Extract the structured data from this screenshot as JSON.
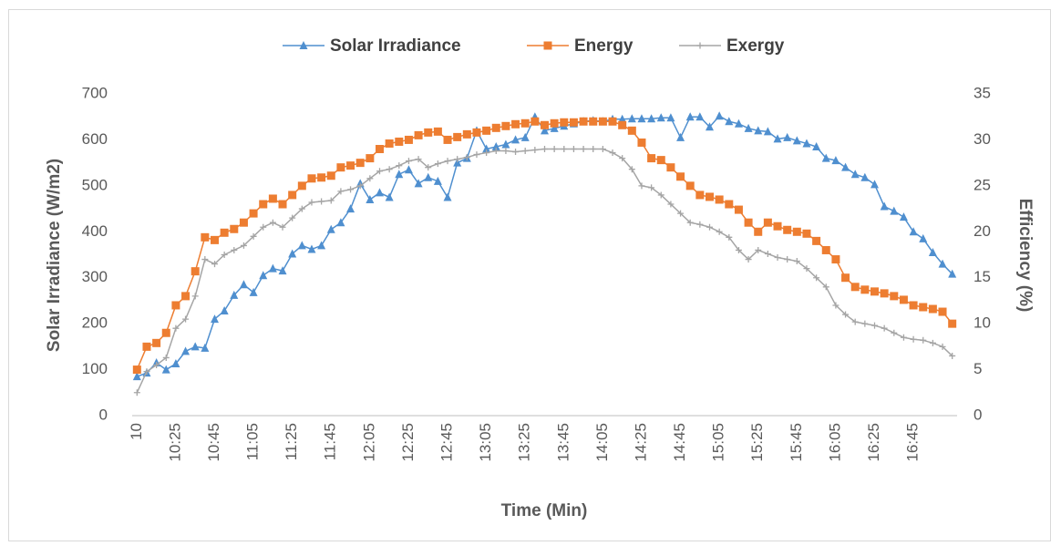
{
  "chart_data": {
    "type": "line",
    "xlabel": "Time (Min)",
    "ylabel": "Solar Irradiance (W/m2)",
    "y2label": "Efficiency (%)",
    "categories": [
      "10",
      null,
      null,
      null,
      "10:25",
      null,
      null,
      null,
      "10:45",
      null,
      null,
      null,
      "11:05",
      null,
      null,
      null,
      "11:25",
      null,
      null,
      null,
      "11:45",
      null,
      null,
      null,
      "12:05",
      null,
      null,
      null,
      "12:25",
      null,
      null,
      null,
      "12:45",
      null,
      null,
      null,
      "13:05",
      null,
      null,
      null,
      "13:25",
      null,
      null,
      null,
      "13:45",
      null,
      null,
      null,
      "14:05",
      null,
      null,
      null,
      "14:25",
      null,
      null,
      null,
      "14:45",
      null,
      null,
      null,
      "15:05",
      null,
      null,
      null,
      "15:25",
      null,
      null,
      null,
      "15:45",
      null,
      null,
      null,
      "16:05",
      null,
      null,
      null,
      "16:25",
      null,
      null,
      null,
      "16:45",
      null,
      null,
      null,
      null
    ],
    "series": [
      {
        "name": "Solar Irradiance",
        "color": "#4f8fcf",
        "marker": "triangle",
        "axis": "y",
        "values": [
          85,
          93,
          115,
          100,
          113,
          140,
          150,
          147,
          210,
          228,
          262,
          285,
          268,
          305,
          320,
          315,
          352,
          370,
          362,
          370,
          405,
          420,
          450,
          505,
          470,
          485,
          475,
          525,
          535,
          505,
          518,
          510,
          475,
          550,
          560,
          620,
          580,
          585,
          590,
          600,
          605,
          650,
          620,
          625,
          630,
          635,
          640,
          642,
          640,
          645,
          645,
          646,
          646,
          646,
          648,
          648,
          605,
          650,
          650,
          628,
          652,
          640,
          635,
          625,
          620,
          618,
          602,
          605,
          598,
          592,
          585,
          560,
          555,
          540,
          525,
          518,
          503,
          455,
          445,
          432,
          400,
          385,
          355,
          330,
          308
        ]
      },
      {
        "name": "Energy",
        "color": "#ed7d31",
        "marker": "square",
        "axis": "y2",
        "values": [
          5,
          7.5,
          7.9,
          9,
          12,
          13,
          15.7,
          19.4,
          19.1,
          19.9,
          20.3,
          21,
          22,
          23,
          23.6,
          23,
          24,
          25,
          25.8,
          25.9,
          26.1,
          27,
          27.2,
          27.5,
          28,
          29,
          29.6,
          29.8,
          30,
          30.5,
          30.8,
          30.9,
          30,
          30.3,
          30.6,
          30.8,
          31,
          31.3,
          31.5,
          31.7,
          31.8,
          32,
          31.6,
          31.8,
          31.9,
          31.9,
          32,
          32,
          32,
          32,
          31.6,
          31,
          29.7,
          28,
          27.8,
          27,
          26,
          25,
          24,
          23.8,
          23.5,
          23,
          22.4,
          21,
          20,
          21,
          20.6,
          20.2,
          20,
          19.8,
          19,
          18,
          17,
          15,
          14,
          13.7,
          13.5,
          13.3,
          13,
          12.6,
          12,
          11.8,
          11.6,
          11.3,
          10
        ]
      },
      {
        "name": "Exergy",
        "color": "#a5a5a5",
        "marker": "plus",
        "axis": "y2",
        "values": [
          2.5,
          4.8,
          5.5,
          6.3,
          9.5,
          10.5,
          13,
          17,
          16.5,
          17.5,
          18,
          18.5,
          19.5,
          20.5,
          21,
          20.5,
          21.5,
          22.5,
          23.2,
          23.3,
          23.4,
          24.4,
          24.6,
          25,
          25.8,
          26.6,
          26.8,
          27.2,
          27.7,
          27.9,
          27,
          27.4,
          27.7,
          27.9,
          28.1,
          28.4,
          28.6,
          28.8,
          28.8,
          28.7,
          28.8,
          28.9,
          29,
          29,
          29,
          29,
          29,
          29,
          29,
          28.6,
          28,
          26.8,
          25,
          24.8,
          24,
          23,
          22,
          21,
          20.8,
          20.5,
          20,
          19.4,
          18,
          17,
          18,
          17.6,
          17.2,
          17,
          16.8,
          16,
          15,
          14,
          12,
          11,
          10.2,
          10,
          9.8,
          9.5,
          9,
          8.5,
          8.3,
          8.2,
          7.9,
          7.5,
          6.5
        ]
      }
    ],
    "ylim": [
      0,
      700
    ],
    "yticks": [
      0,
      100,
      200,
      300,
      400,
      500,
      600,
      700
    ],
    "y2lim": [
      0,
      35
    ],
    "y2ticks": [
      0,
      5,
      10,
      15,
      20,
      25,
      30,
      35
    ],
    "grid": false,
    "legend": "top"
  }
}
